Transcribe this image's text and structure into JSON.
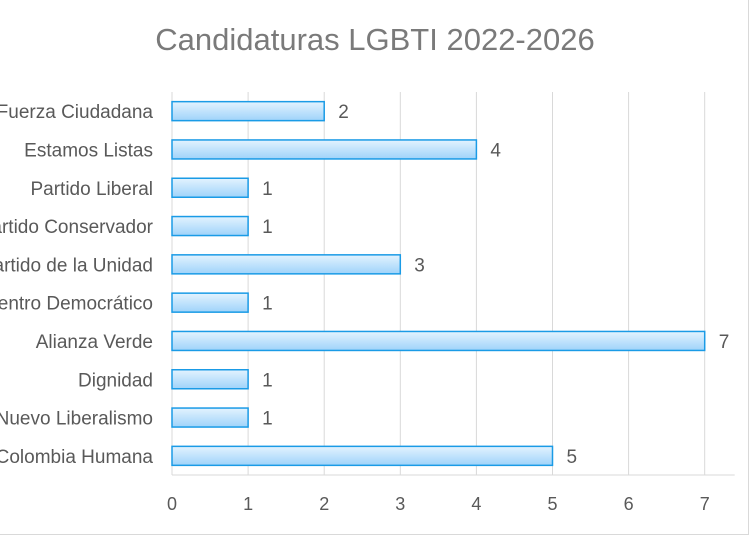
{
  "chart_data": {
    "type": "bar",
    "orientation": "horizontal",
    "title": "Candidaturas LGBTI 2022-2026",
    "categories": [
      "Fuerza Ciudadana",
      "Estamos Listas",
      "Partido Liberal",
      "Partido Conservador",
      "Partido de la Unidad",
      "Centro Democrático",
      "Alianza Verde",
      "Dignidad",
      "Nuevo Liberalismo",
      "Colombia Humana"
    ],
    "values": [
      2,
      4,
      1,
      1,
      3,
      1,
      7,
      1,
      1,
      5
    ],
    "data_labels": [
      "2",
      "4",
      "1",
      "1",
      "3",
      "1",
      "7",
      "1",
      "1",
      "5"
    ],
    "x_ticks": [
      "0",
      "1",
      "2",
      "3",
      "4",
      "5",
      "6",
      "7"
    ],
    "xlim": [
      0,
      7
    ],
    "xlabel": "",
    "ylabel": "",
    "grid": "vertical",
    "legend": "none",
    "colors": {
      "bar_fill_top": "#e3f3fe",
      "bar_fill_bottom": "#9fd3fa",
      "bar_stroke": "#1a9be6",
      "grid": "#d9d9d9",
      "title": "#7a7a7a",
      "text": "#595959"
    }
  }
}
